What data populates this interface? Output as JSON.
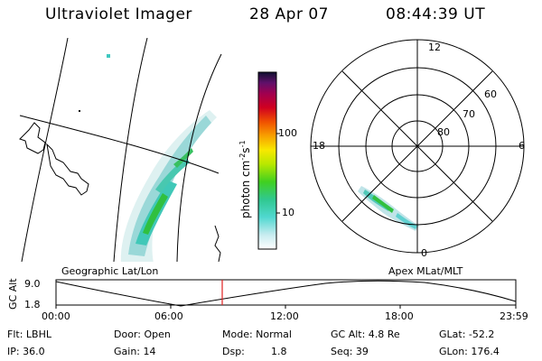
{
  "header": {
    "title": "Ultraviolet Imager",
    "date": "28 Apr 07",
    "time": "08:44:39 UT"
  },
  "colorbar": {
    "unit_prefix": "photon cm",
    "unit_exp1": "-2",
    "unit_mid": "s",
    "unit_exp2": "-1",
    "ticks": [
      "100",
      "10"
    ]
  },
  "polar": {
    "mlt_labels": {
      "top": "12",
      "left": "18",
      "right": "6",
      "bottom": "0"
    },
    "lat_labels": [
      "60",
      "70",
      "80"
    ]
  },
  "panel_labels": {
    "geo": "Geographic Lat/Lon",
    "apex": "Apex MLat/MLT"
  },
  "altitude_plot": {
    "ylabel": "GC Alt",
    "y_ticks": [
      "9.0",
      "1.8"
    ],
    "x_ticks": [
      "00:00",
      "06:00",
      "12:00",
      "18:00",
      "23:59"
    ],
    "current_time_fraction": 0.365
  },
  "info": {
    "filter": "Flt: LBHL",
    "door": "Door: Open",
    "mode": "Mode: Normal",
    "gc_alt": "GC Alt: 4.8 Re",
    "glat": "GLat: -52.2",
    "ip": "IP: 36.0",
    "gain": "Gain: 14",
    "dsp_label": "Dsp:",
    "dsp_value": "1.8",
    "seq": "Seq: 39",
    "glon": "GLon: 176.4"
  },
  "colors": {
    "marker": "#e02020",
    "aurora_low": "#bfe6e6",
    "aurora_mid": "#38c8b8",
    "aurora_high": "#30c040"
  }
}
